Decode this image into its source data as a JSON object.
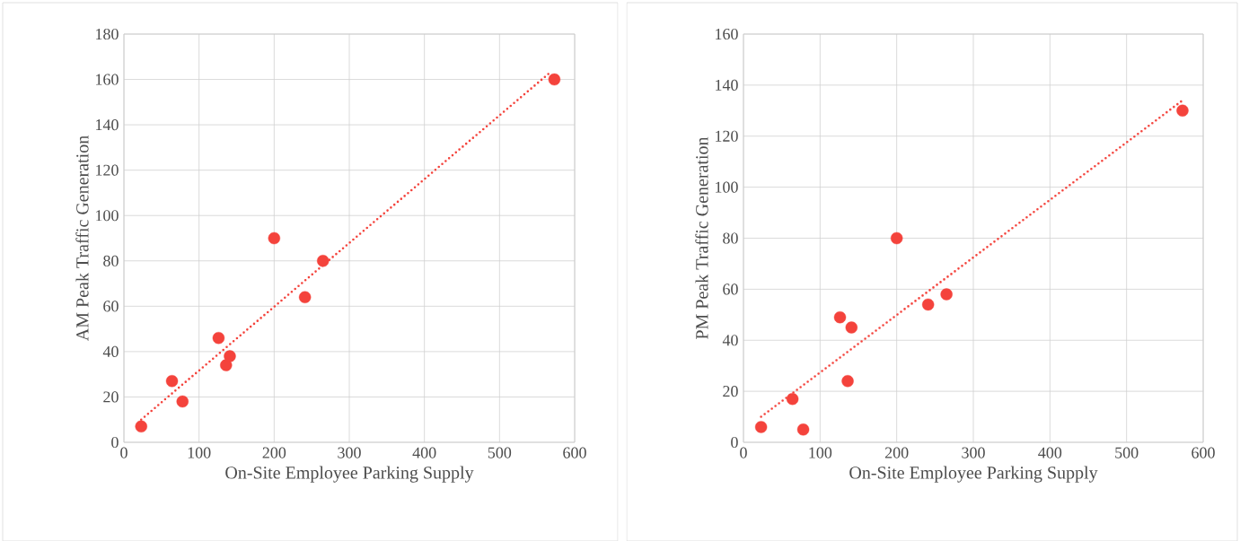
{
  "chart_data": [
    {
      "type": "scatter",
      "xlabel": "On-Site Employee Parking Supply",
      "ylabel": "AM Peak Traffic Generation",
      "xlim": [
        0,
        600
      ],
      "ylim": [
        0,
        180
      ],
      "xticks": [
        0,
        100,
        200,
        300,
        400,
        500,
        600
      ],
      "yticks": [
        0,
        20,
        40,
        60,
        80,
        100,
        120,
        140,
        160,
        180
      ],
      "grid": true,
      "series": [
        {
          "marker": "circle",
          "color": "#f4433c",
          "x": [
            23,
            64,
            78,
            126,
            136,
            141,
            200,
            241,
            265,
            573
          ],
          "values": [
            7,
            27,
            18,
            46,
            34,
            38,
            90,
            64,
            80,
            160
          ]
        },
        {
          "type": "line",
          "line_style": "dotted",
          "color": "#f4433c",
          "x": [
            23,
            567
          ],
          "values": [
            10,
            163
          ]
        }
      ]
    },
    {
      "type": "scatter",
      "xlabel": "On-Site Employee Parking Supply",
      "ylabel": "PM Peak Traffic Generation",
      "xlim": [
        0,
        600
      ],
      "ylim": [
        0,
        160
      ],
      "xticks": [
        0,
        100,
        200,
        300,
        400,
        500,
        600
      ],
      "yticks": [
        0,
        20,
        40,
        60,
        80,
        100,
        120,
        140,
        160
      ],
      "grid": true,
      "series": [
        {
          "marker": "circle",
          "color": "#f4433c",
          "x": [
            23,
            64,
            78,
            126,
            136,
            141,
            200,
            241,
            265,
            573
          ],
          "values": [
            6,
            17,
            5,
            49,
            24,
            45,
            80,
            54,
            58,
            130
          ]
        },
        {
          "type": "line",
          "line_style": "dotted",
          "color": "#f4433c",
          "x": [
            23,
            573
          ],
          "values": [
            10,
            134
          ]
        }
      ]
    }
  ]
}
